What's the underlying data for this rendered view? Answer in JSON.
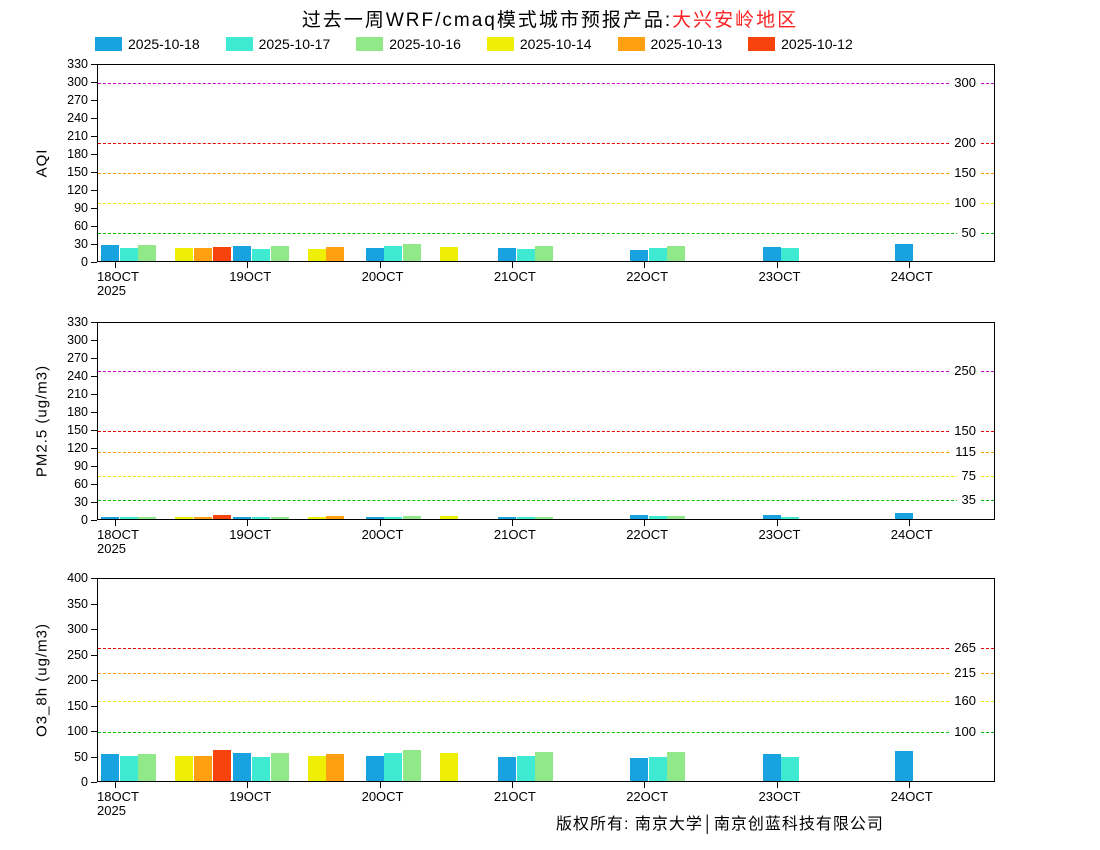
{
  "title": {
    "main": "过去一周WRF/cmaq模式城市预报产品:",
    "region": "大兴安岭地区",
    "region_color": "#ff2222"
  },
  "legend": {
    "position": "top",
    "items": [
      {
        "label": "2025-10-18",
        "color": "#18a2e0"
      },
      {
        "label": "2025-10-17",
        "color": "#3eebd2"
      },
      {
        "label": "2025-10-16",
        "color": "#90e888"
      },
      {
        "label": "2025-10-14",
        "color": "#efef06"
      },
      {
        "label": "2025-10-13",
        "color": "#ffa013"
      },
      {
        "label": "2025-10-12",
        "color": "#f8430f"
      }
    ]
  },
  "x_axis": {
    "categories": [
      "18OCT",
      "19OCT",
      "20OCT",
      "21OCT",
      "22OCT",
      "23OCT",
      "24OCT"
    ],
    "year_label": "2025"
  },
  "footer": {
    "copyright": "版权所有: 南京大学│南京创蓝科技有限公司"
  },
  "chart_data": [
    {
      "type": "bar",
      "title": "",
      "xlabel": "",
      "ylabel": "AQI",
      "ylim": [
        0,
        330
      ],
      "ytick_step": 30,
      "grid": false,
      "categories": [
        "18OCT",
        "19OCT",
        "20OCT",
        "21OCT",
        "22OCT",
        "23OCT",
        "24OCT"
      ],
      "series": [
        {
          "name": "2025-10-18",
          "color": "#18a2e0",
          "slot": 0,
          "values": [
            26,
            25,
            22,
            22,
            19,
            23,
            28
          ]
        },
        {
          "name": "2025-10-17",
          "color": "#3eebd2",
          "slot": 1,
          "values": [
            22,
            20,
            25,
            20,
            21,
            22,
            null
          ]
        },
        {
          "name": "2025-10-16",
          "color": "#90e888",
          "slot": 2,
          "values": [
            26,
            25,
            29,
            25,
            25,
            null,
            null
          ]
        },
        {
          "name": "2025-10-14",
          "color": "#efef06",
          "slot": 4,
          "values": [
            22,
            20,
            23,
            null,
            null,
            null,
            null
          ]
        },
        {
          "name": "2025-10-13",
          "color": "#ffa013",
          "slot": 5,
          "values": [
            22,
            23,
            null,
            null,
            null,
            null,
            null
          ]
        },
        {
          "name": "2025-10-12",
          "color": "#f8430f",
          "slot": 6,
          "values": [
            24,
            null,
            null,
            null,
            null,
            null,
            null
          ]
        }
      ],
      "guidelines": [
        {
          "value": 50,
          "color": "#00bb00",
          "label": "50"
        },
        {
          "value": 100,
          "color": "#e8e800",
          "label": "100"
        },
        {
          "value": 150,
          "color": "#ff9900",
          "label": "150"
        },
        {
          "value": 200,
          "color": "#e60000",
          "label": "200"
        },
        {
          "value": 300,
          "color": "#cc00cc",
          "label": "300"
        }
      ]
    },
    {
      "type": "bar",
      "title": "",
      "xlabel": "",
      "ylabel": "PM2.5 (ug/m3)",
      "ylim": [
        0,
        330
      ],
      "ytick_step": 30,
      "grid": false,
      "categories": [
        "18OCT",
        "19OCT",
        "20OCT",
        "21OCT",
        "22OCT",
        "23OCT",
        "24OCT"
      ],
      "series": [
        {
          "name": "2025-10-18",
          "color": "#18a2e0",
          "slot": 0,
          "values": [
            3,
            4,
            4,
            4,
            7,
            7,
            10
          ]
        },
        {
          "name": "2025-10-17",
          "color": "#3eebd2",
          "slot": 1,
          "values": [
            3,
            3,
            4,
            3,
            5,
            4,
            null
          ]
        },
        {
          "name": "2025-10-16",
          "color": "#90e888",
          "slot": 2,
          "values": [
            3,
            4,
            5,
            4,
            5,
            null,
            null
          ]
        },
        {
          "name": "2025-10-14",
          "color": "#efef06",
          "slot": 4,
          "values": [
            3,
            3,
            5,
            null,
            null,
            null,
            null
          ]
        },
        {
          "name": "2025-10-13",
          "color": "#ffa013",
          "slot": 5,
          "values": [
            4,
            5,
            null,
            null,
            null,
            null,
            null
          ]
        },
        {
          "name": "2025-10-12",
          "color": "#f8430f",
          "slot": 6,
          "values": [
            6,
            null,
            null,
            null,
            null,
            null,
            null
          ]
        }
      ],
      "guidelines": [
        {
          "value": 35,
          "color": "#00bb00",
          "label": "35"
        },
        {
          "value": 75,
          "color": "#e8e800",
          "label": "75"
        },
        {
          "value": 115,
          "color": "#ff9900",
          "label": "115"
        },
        {
          "value": 150,
          "color": "#e60000",
          "label": "150"
        },
        {
          "value": 250,
          "color": "#cc00cc",
          "label": "250"
        }
      ]
    },
    {
      "type": "bar",
      "title": "",
      "xlabel": "",
      "ylabel": "O3_8h (ug/m3)",
      "ylim": [
        0,
        400
      ],
      "ytick_step": 50,
      "grid": false,
      "categories": [
        "18OCT",
        "19OCT",
        "20OCT",
        "21OCT",
        "22OCT",
        "23OCT",
        "24OCT"
      ],
      "series": [
        {
          "name": "2025-10-18",
          "color": "#18a2e0",
          "slot": 0,
          "values": [
            53,
            55,
            50,
            48,
            46,
            53,
            58
          ]
        },
        {
          "name": "2025-10-17",
          "color": "#3eebd2",
          "slot": 1,
          "values": [
            50,
            48,
            55,
            50,
            48,
            48,
            null
          ]
        },
        {
          "name": "2025-10-16",
          "color": "#90e888",
          "slot": 2,
          "values": [
            53,
            55,
            60,
            56,
            56,
            null,
            null
          ]
        },
        {
          "name": "2025-10-14",
          "color": "#efef06",
          "slot": 4,
          "values": [
            50,
            50,
            55,
            null,
            null,
            null,
            null
          ]
        },
        {
          "name": "2025-10-13",
          "color": "#ffa013",
          "slot": 5,
          "values": [
            50,
            53,
            null,
            null,
            null,
            null,
            null
          ]
        },
        {
          "name": "2025-10-12",
          "color": "#f8430f",
          "slot": 6,
          "values": [
            60,
            null,
            null,
            null,
            null,
            null,
            null
          ]
        }
      ],
      "guidelines": [
        {
          "value": 100,
          "color": "#00bb00",
          "label": "100"
        },
        {
          "value": 160,
          "color": "#e8e800",
          "label": "160"
        },
        {
          "value": 215,
          "color": "#ff9900",
          "label": "215"
        },
        {
          "value": 265,
          "color": "#e60000",
          "label": "265"
        }
      ]
    }
  ]
}
